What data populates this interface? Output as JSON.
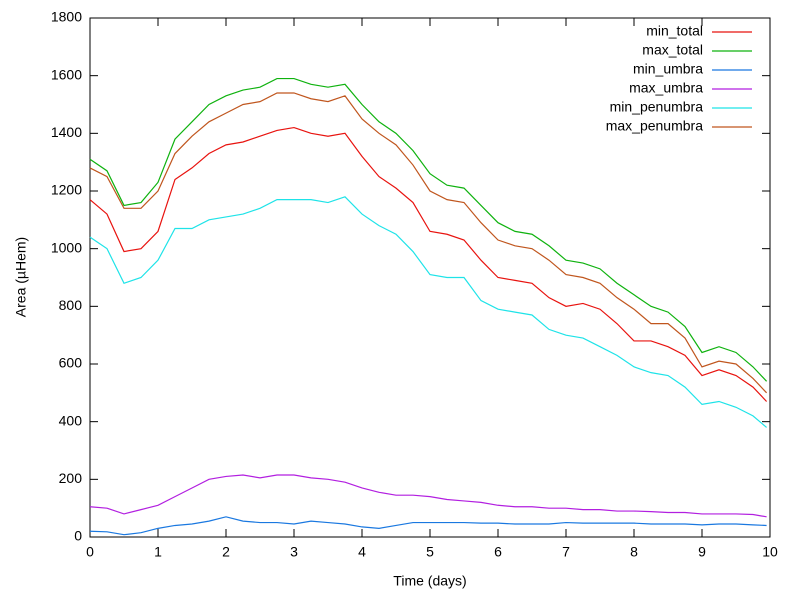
{
  "chart_data": {
    "type": "line",
    "xlabel": "Time (days)",
    "ylabel": "Area (µHem)",
    "xlim": [
      0,
      10
    ],
    "xticks": [
      0,
      1,
      2,
      3,
      4,
      5,
      6,
      7,
      8,
      9,
      10
    ],
    "ylim": [
      0,
      1800
    ],
    "yticks": [
      0,
      200,
      400,
      600,
      800,
      1000,
      1200,
      1400,
      1600,
      1800
    ],
    "legend": "top-right",
    "x": [
      0,
      0.25,
      0.5,
      0.75,
      1,
      1.25,
      1.5,
      1.75,
      2,
      2.25,
      2.5,
      2.75,
      3,
      3.25,
      3.5,
      3.75,
      4,
      4.25,
      4.5,
      4.75,
      5,
      5.25,
      5.5,
      5.75,
      6,
      6.25,
      6.5,
      6.75,
      7,
      7.25,
      7.5,
      7.75,
      8,
      8.25,
      8.5,
      8.75,
      9,
      9.25,
      9.5,
      9.75,
      9.95
    ],
    "series": [
      {
        "name": "min_total",
        "color": "#e8130f",
        "values": [
          1170,
          1120,
          990,
          1000,
          1060,
          1240,
          1280,
          1330,
          1360,
          1370,
          1390,
          1410,
          1420,
          1400,
          1390,
          1400,
          1320,
          1250,
          1210,
          1160,
          1060,
          1050,
          1030,
          960,
          900,
          890,
          880,
          830,
          800,
          810,
          790,
          740,
          680,
          680,
          660,
          630,
          560,
          580,
          560,
          520,
          470
        ]
      },
      {
        "name": "max_total",
        "color": "#0fb20f",
        "values": [
          1310,
          1270,
          1150,
          1160,
          1230,
          1380,
          1440,
          1500,
          1530,
          1550,
          1560,
          1590,
          1590,
          1570,
          1560,
          1570,
          1500,
          1440,
          1400,
          1340,
          1260,
          1220,
          1210,
          1150,
          1090,
          1060,
          1050,
          1010,
          960,
          950,
          930,
          880,
          840,
          800,
          780,
          730,
          640,
          660,
          640,
          590,
          540
        ]
      },
      {
        "name": "min_umbra",
        "color": "#1a78e0",
        "values": [
          20,
          18,
          8,
          15,
          30,
          40,
          45,
          55,
          70,
          55,
          50,
          50,
          45,
          55,
          50,
          45,
          35,
          30,
          40,
          50,
          50,
          50,
          50,
          48,
          48,
          45,
          45,
          45,
          50,
          48,
          48,
          48,
          48,
          45,
          45,
          45,
          42,
          45,
          45,
          42,
          40
        ]
      },
      {
        "name": "max_umbra",
        "color": "#b21fe0",
        "values": [
          105,
          100,
          80,
          95,
          110,
          140,
          170,
          200,
          210,
          215,
          205,
          215,
          215,
          205,
          200,
          190,
          170,
          155,
          145,
          145,
          140,
          130,
          125,
          120,
          110,
          105,
          105,
          100,
          100,
          95,
          95,
          90,
          90,
          88,
          85,
          85,
          80,
          80,
          80,
          78,
          70
        ]
      },
      {
        "name": "min_penumbra",
        "color": "#1ee3e8",
        "values": [
          1040,
          1000,
          880,
          900,
          960,
          1070,
          1070,
          1100,
          1110,
          1120,
          1140,
          1170,
          1170,
          1170,
          1160,
          1180,
          1120,
          1080,
          1050,
          990,
          910,
          900,
          900,
          820,
          790,
          780,
          770,
          720,
          700,
          690,
          660,
          630,
          590,
          570,
          560,
          520,
          460,
          470,
          450,
          420,
          380
        ]
      },
      {
        "name": "max_penumbra",
        "color": "#c0561e",
        "values": [
          1280,
          1250,
          1140,
          1140,
          1200,
          1330,
          1390,
          1440,
          1470,
          1500,
          1510,
          1540,
          1540,
          1520,
          1510,
          1530,
          1450,
          1400,
          1360,
          1290,
          1200,
          1170,
          1160,
          1090,
          1030,
          1010,
          1000,
          960,
          910,
          900,
          880,
          830,
          790,
          740,
          740,
          690,
          590,
          610,
          600,
          550,
          500
        ]
      }
    ]
  }
}
